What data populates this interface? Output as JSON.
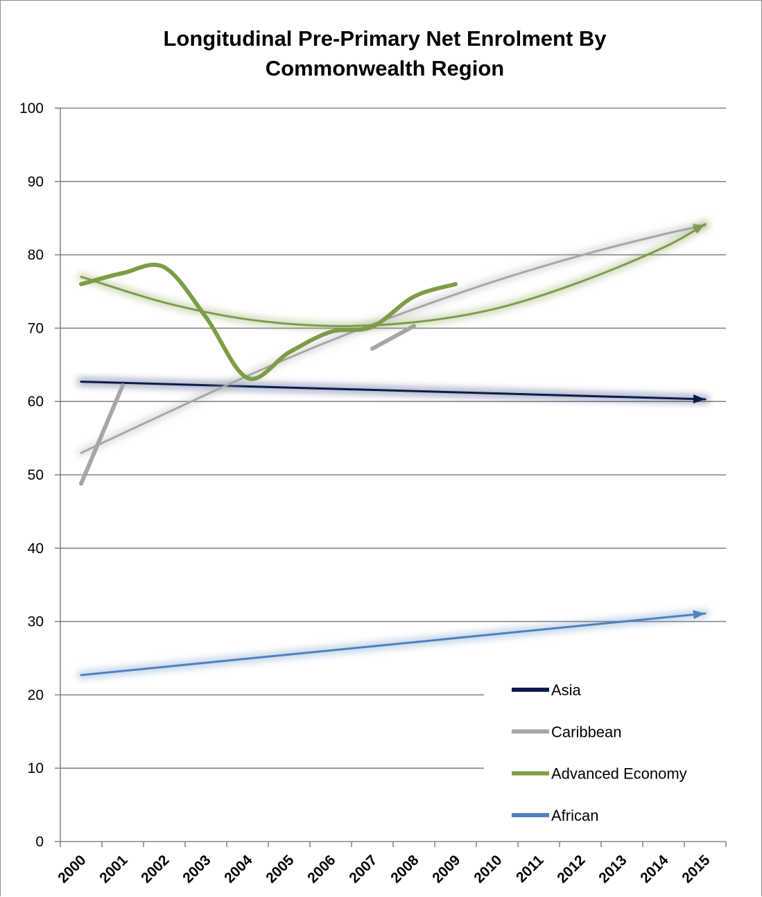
{
  "chart_data": {
    "type": "line",
    "title_lines": [
      "Longitudinal Pre-Primary Net Enrolment By",
      "Commonwealth Region"
    ],
    "xlabel": "",
    "ylabel": "",
    "categories": [
      "2000",
      "2001",
      "2002",
      "2003",
      "2004",
      "2005",
      "2006",
      "2007",
      "2008",
      "2009",
      "2010",
      "2011",
      "2012",
      "2013",
      "2014",
      "2015"
    ],
    "ylim": [
      0,
      100
    ],
    "yticks": [
      0,
      10,
      20,
      30,
      40,
      50,
      60,
      70,
      80,
      90,
      100
    ],
    "grid": "horizontal",
    "legend_position": "bottom-right",
    "series": [
      {
        "name": "Asia",
        "color": "#0d1a4d",
        "type": "trendline-only",
        "trendline": {
          "kind": "linear",
          "x": [
            2000,
            2015
          ],
          "y": [
            62.7,
            60.3
          ]
        }
      },
      {
        "name": "Caribbean",
        "color": "#a5a7aa",
        "segments": [
          {
            "x": [
              2000,
              2001
            ],
            "y": [
              48.8,
              62.2
            ]
          },
          {
            "x": [
              2007,
              2008
            ],
            "y": [
              67.2,
              70.3
            ]
          }
        ],
        "trendline": {
          "kind": "polynomial",
          "x": [
            2000,
            2002,
            2004,
            2006,
            2008,
            2010,
            2012,
            2014,
            2015
          ],
          "y": [
            53.0,
            58.3,
            63.5,
            68.3,
            72.6,
            76.5,
            79.9,
            82.8,
            84.0
          ]
        }
      },
      {
        "name": "Advanced Economy",
        "color": "#7e9c48",
        "x": [
          2000,
          2001,
          2002,
          2003,
          2004,
          2005,
          2006,
          2007,
          2008,
          2009
        ],
        "y": [
          76.0,
          77.5,
          78.3,
          71.5,
          63.2,
          66.7,
          69.5,
          70.2,
          74.3,
          76.0
        ],
        "trendline": {
          "kind": "polynomial",
          "x": [
            2000,
            2002,
            2004,
            2006,
            2008,
            2010,
            2012,
            2014,
            2015
          ],
          "y": [
            77.0,
            73.5,
            71.2,
            70.3,
            70.8,
            72.7,
            76.3,
            81.0,
            84.2
          ]
        }
      },
      {
        "name": "African",
        "color": "#4f81bd",
        "type": "trendline-only",
        "trendline": {
          "kind": "linear",
          "x": [
            2000,
            2015
          ],
          "y": [
            22.7,
            31.1
          ]
        }
      }
    ]
  }
}
